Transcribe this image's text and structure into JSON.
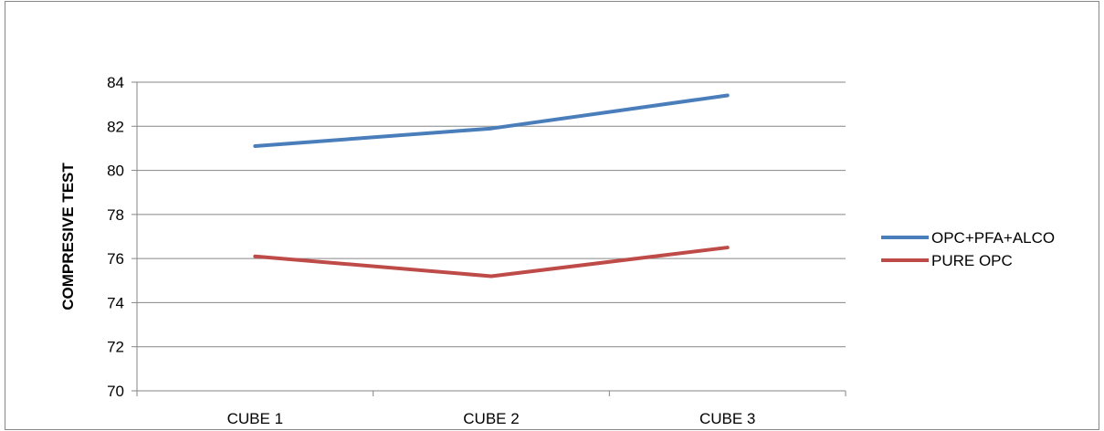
{
  "chart_data": {
    "type": "line",
    "title": "",
    "xlabel": "",
    "ylabel": "COMPRESIVE TEST",
    "categories": [
      "CUBE 1",
      "CUBE 2",
      "CUBE 3"
    ],
    "ylim": [
      70,
      84
    ],
    "yticks": [
      70,
      72,
      74,
      76,
      78,
      80,
      82,
      84
    ],
    "grid": true,
    "legend_position": "right",
    "series": [
      {
        "name": "OPC+PFA+ALCO",
        "values": [
          81.1,
          81.9,
          83.4
        ],
        "color": "#4a7ebb"
      },
      {
        "name": "PURE OPC",
        "values": [
          76.1,
          75.2,
          76.5
        ],
        "color": "#be4b48"
      }
    ]
  }
}
